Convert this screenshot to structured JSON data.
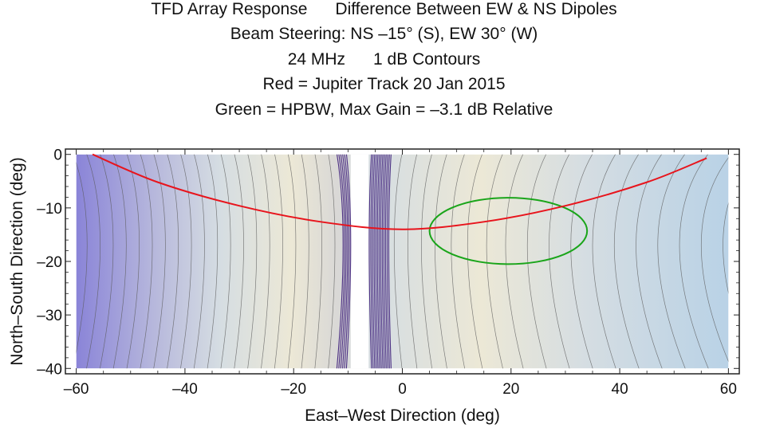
{
  "chart_data": {
    "type": "contour",
    "title_lines": [
      "TFD Array Response      Difference Between EW & NS Dipoles",
      "Beam Steering: NS –15° (S), EW 30° (W)",
      "24 MHz      1 dB Contours",
      "Red = Jupiter Track 20 Jan 2015",
      "Green = HPBW, Max Gain = –3.1 dB Relative"
    ],
    "xlabel": "East–West Direction (deg)",
    "ylabel": "North–South Direction (deg)",
    "xlim": [
      -62,
      62
    ],
    "ylim": [
      -41,
      1
    ],
    "x_ticks": [
      -60,
      -40,
      -20,
      0,
      20,
      40,
      60
    ],
    "x_tick_labels": [
      "–60",
      "–40",
      "–20",
      "0",
      "20",
      "40",
      "60"
    ],
    "y_ticks": [
      0,
      -10,
      -20,
      -30,
      -40
    ],
    "y_tick_labels": [
      "0",
      "–10",
      "–20",
      "–30",
      "–40"
    ],
    "data_extent": {
      "x": [
        -60,
        60
      ],
      "y": [
        -40,
        0
      ]
    },
    "null_band_x": [
      -9.5,
      -6.2
    ],
    "contour_interval_db": 1,
    "max_gain_db": -3.1,
    "hpbw_ellipse": {
      "center": [
        19.5,
        -14.3
      ],
      "semi_axis_x": 14.5,
      "semi_axis_y": 6.2
    },
    "jupiter_track": {
      "x": [
        -57,
        -45,
        -30,
        -15,
        0,
        15,
        30,
        45,
        56
      ],
      "y": [
        0,
        -5.2,
        -9.6,
        -12.6,
        -14,
        -12.6,
        -9.6,
        -5.2,
        -0.7
      ]
    },
    "colors": {
      "jupiter_track": "#e8141c",
      "hpbw": "#1aa51a",
      "contour_line": "#5a5a5a",
      "low_gain": "#8a84d8",
      "mid_gain": "#d5dde2",
      "high_gain": "#ece8d6",
      "null_band": "#3a1a78"
    }
  }
}
